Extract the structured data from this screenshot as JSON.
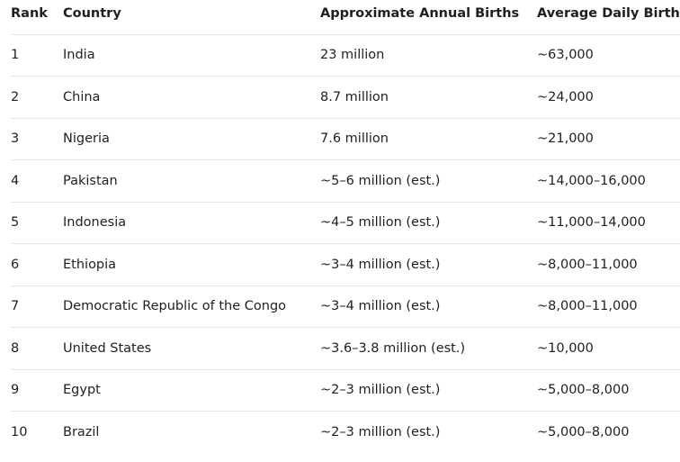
{
  "table": {
    "headers": [
      "Rank",
      "Country",
      "Approximate Annual Births",
      "Average Daily Births"
    ],
    "rows": [
      [
        "1",
        "India",
        "23 million",
        "~63,000"
      ],
      [
        "2",
        "China",
        "8.7 million",
        "~24,000"
      ],
      [
        "3",
        "Nigeria",
        "7.6 million",
        "~21,000"
      ],
      [
        "4",
        "Pakistan",
        "~5–6 million (est.)",
        "~14,000–16,000"
      ],
      [
        "5",
        "Indonesia",
        "~4–5 million (est.)",
        "~11,000–14,000"
      ],
      [
        "6",
        "Ethiopia",
        "~3–4 million (est.)",
        "~8,000–11,000"
      ],
      [
        "7",
        "Democratic Republic of the Congo",
        "~3–4 million (est.)",
        "~8,000–11,000"
      ],
      [
        "8",
        "United States",
        "~3.6–3.8 million (est.)",
        "~10,000"
      ],
      [
        "9",
        "Egypt",
        "~2–3 million (est.)",
        "~5,000–8,000"
      ],
      [
        "10",
        "Brazil",
        "~2–3 million (est.)",
        "~5,000–8,000"
      ]
    ]
  }
}
